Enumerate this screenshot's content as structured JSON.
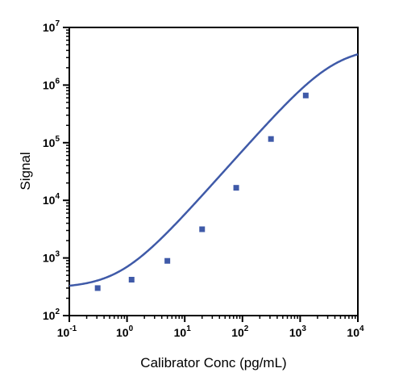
{
  "chart_data": {
    "type": "scatter",
    "title": "",
    "xlabel": "Calibrator Conc (pg/mL)",
    "ylabel": "Signal",
    "xscale": "log",
    "yscale": "log",
    "xlim": [
      0.1,
      10000
    ],
    "ylim": [
      100,
      10000000
    ],
    "grid": false,
    "legend": "none",
    "x_ticks": [
      {
        "base": "10",
        "exp": "-1"
      },
      {
        "base": "10",
        "exp": "0"
      },
      {
        "base": "10",
        "exp": "1"
      },
      {
        "base": "10",
        "exp": "2"
      },
      {
        "base": "10",
        "exp": "3"
      },
      {
        "base": "10",
        "exp": "4"
      }
    ],
    "y_ticks": [
      {
        "base": "10",
        "exp": "2"
      },
      {
        "base": "10",
        "exp": "3"
      },
      {
        "base": "10",
        "exp": "4"
      },
      {
        "base": "10",
        "exp": "5"
      },
      {
        "base": "10",
        "exp": "6"
      },
      {
        "base": "10",
        "exp": "7"
      }
    ],
    "series": [
      {
        "type": "scatter",
        "color": "#3f5aa8",
        "x": [
          0.31,
          1.2,
          5.0,
          20,
          78,
          312,
          1250
        ],
        "y": [
          300,
          420,
          890,
          3150,
          16500,
          116000,
          660000
        ]
      },
      {
        "type": "line",
        "color": "#3f5aa8",
        "fit": "4PL",
        "fit_params": {
          "bottom": 300,
          "top": 4600000,
          "ec50": 3900,
          "hill": 1.13
        }
      }
    ]
  }
}
